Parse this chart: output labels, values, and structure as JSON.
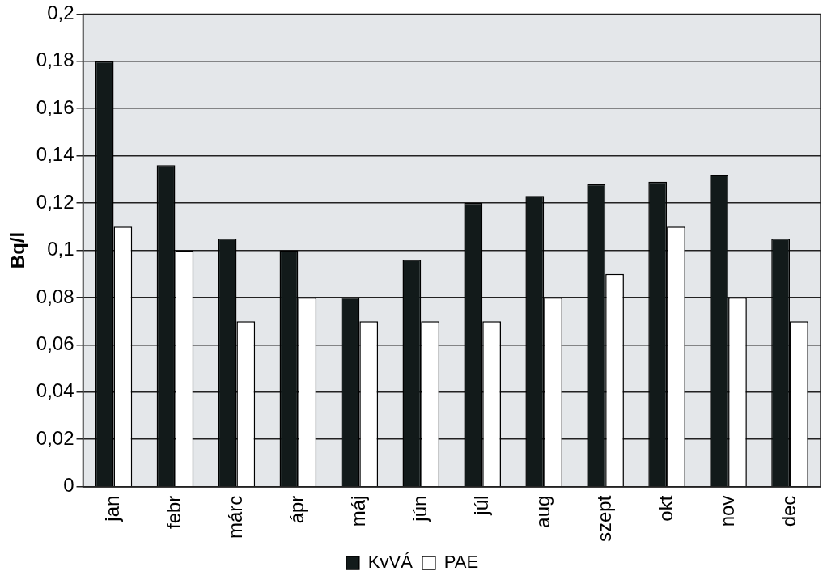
{
  "chart_data": {
    "type": "bar",
    "ylabel": "Bq/l",
    "categories": [
      "jan",
      "febr",
      "márc",
      "ápr",
      "máj",
      "jún",
      "júl",
      "aug",
      "szept",
      "okt",
      "nov",
      "dec"
    ],
    "series": [
      {
        "name": "KvVÁ",
        "color": "#121a1a",
        "values": [
          0.18,
          0.136,
          0.105,
          0.1,
          0.08,
          0.096,
          0.12,
          0.123,
          0.128,
          0.129,
          0.132,
          0.105
        ]
      },
      {
        "name": "PAE",
        "color": "#ffffff",
        "values": [
          0.11,
          0.1,
          0.07,
          0.08,
          0.07,
          0.07,
          0.07,
          0.08,
          0.09,
          0.11,
          0.08,
          0.07
        ]
      }
    ],
    "ylim": [
      0,
      0.2
    ],
    "yticks": [
      {
        "value": 0,
        "label": "0"
      },
      {
        "value": 0.02,
        "label": "0,02"
      },
      {
        "value": 0.04,
        "label": "0,04"
      },
      {
        "value": 0.06,
        "label": "0,06"
      },
      {
        "value": 0.08,
        "label": "0,08"
      },
      {
        "value": 0.1,
        "label": "0,1"
      },
      {
        "value": 0.12,
        "label": "0,12"
      },
      {
        "value": 0.14,
        "label": "0,14"
      },
      {
        "value": 0.16,
        "label": "0,16"
      },
      {
        "value": 0.18,
        "label": "0,18"
      },
      {
        "value": 0.2,
        "label": "0,2"
      }
    ],
    "grid": "y",
    "legend": "bottom"
  }
}
